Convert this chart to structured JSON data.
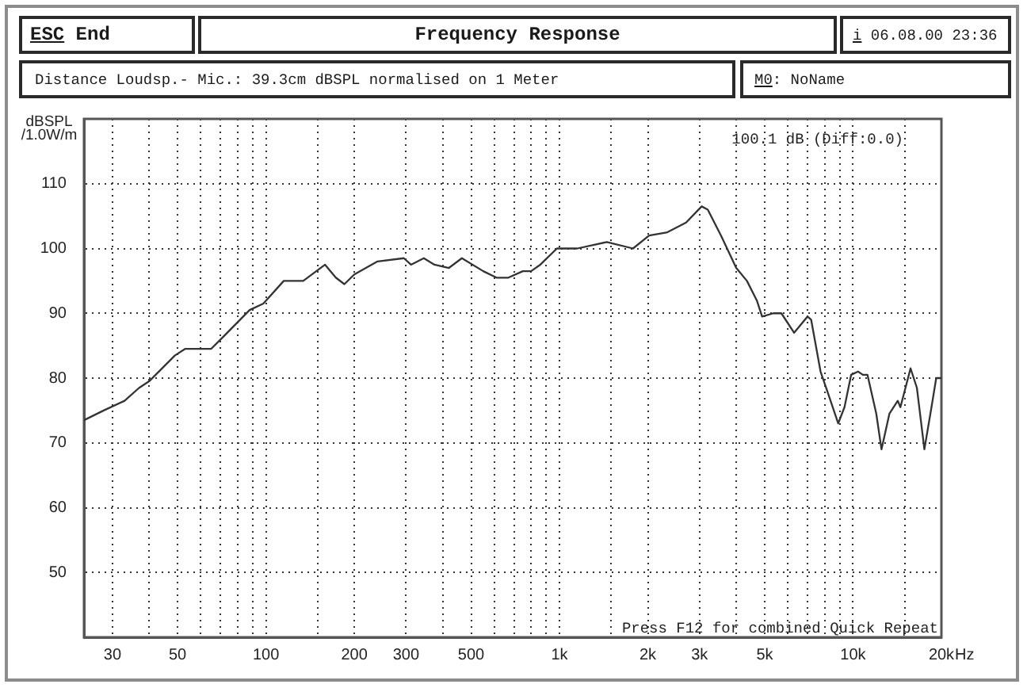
{
  "chart_data": {
    "type": "line",
    "title": "Frequency Response",
    "subtitle": "Distance Loudsp.- Mic.: 39.3cm dBSPL normalised on 1 Meter",
    "xlabel": "Hz",
    "ylabel": "dBSPL /1.0W/m",
    "annotations": [
      "ESC End",
      "i 06.08.00 23:36",
      "M0: NoName",
      "100.1 dB (Diff:0.0)",
      "Press F12 for combined Quick Repeat"
    ],
    "x": [
      24,
      28,
      33,
      37,
      40,
      49,
      53,
      65,
      72,
      88,
      98,
      115,
      134,
      159,
      173,
      185,
      200,
      240,
      295,
      312,
      345,
      375,
      420,
      465,
      550,
      610,
      670,
      750,
      800,
      860,
      980,
      1150,
      1450,
      1780,
      2020,
      2330,
      2700,
      3050,
      3200,
      3550,
      4000,
      4350,
      4700,
      4900,
      5350,
      5700,
      6300,
      7000,
      7200,
      7750,
      8100,
      8900,
      9350,
      9850,
      10400,
      10800,
      11200,
      12000,
      12500,
      13300,
      14200,
      14500,
      15700,
      16500,
      17500,
      18500,
      19200,
      20000
    ],
    "values": [
      73.5,
      75,
      76.5,
      78.5,
      79.5,
      83.5,
      84.5,
      84.5,
      86.5,
      90.5,
      91.5,
      95,
      95,
      97.5,
      95.5,
      94.5,
      96,
      98,
      98.5,
      97.5,
      98.5,
      97.5,
      97,
      98.5,
      96.5,
      95.5,
      95.5,
      96.5,
      96.5,
      97.5,
      100,
      100,
      101,
      100,
      102,
      102.5,
      104,
      106.5,
      106,
      102,
      97,
      95,
      92,
      89.5,
      90,
      90,
      87,
      89.5,
      89,
      81,
      78.5,
      73,
      75.5,
      80.5,
      81,
      80.5,
      80.5,
      74.5,
      69,
      74.5,
      76.5,
      75.5,
      81.5,
      78.5,
      69,
      75.5,
      80,
      80
    ],
    "color": "#333333",
    "log": "x",
    "xlim": [
      24,
      20000
    ],
    "xticks": [
      30,
      {
        "value": 40,
        "label": null
      },
      50,
      {
        "value": 60,
        "label": null
      },
      {
        "value": 70,
        "label": null
      },
      {
        "value": 80,
        "label": null
      },
      {
        "value": 90,
        "label": null
      },
      100,
      {
        "value": 150,
        "label": null
      },
      200,
      300,
      {
        "value": 400,
        "label": null
      },
      500,
      {
        "value": 600,
        "label": null
      },
      {
        "value": 700,
        "label": null
      },
      {
        "value": 800,
        "label": null
      },
      {
        "value": 900,
        "label": null
      },
      {
        "value": 1000,
        "label": "1k"
      },
      {
        "value": 1500,
        "label": null
      },
      {
        "value": 2000,
        "label": "2k"
      },
      {
        "value": 3000,
        "label": "3k"
      },
      {
        "value": 4000,
        "label": null
      },
      {
        "value": 5000,
        "label": "5k"
      },
      {
        "value": 6000,
        "label": null
      },
      {
        "value": 7000,
        "label": null
      },
      {
        "value": 8000,
        "label": null
      },
      {
        "value": 9000,
        "label": null
      },
      {
        "value": 10000,
        "label": "10k"
      },
      {
        "value": 15000,
        "label": null
      },
      {
        "value": 20000,
        "label": "20k"
      }
    ],
    "ylim": [
      40,
      120
    ],
    "yticks": [
      50,
      60,
      70,
      80,
      90,
      100,
      110
    ],
    "grid": true,
    "marker": "none"
  }
}
